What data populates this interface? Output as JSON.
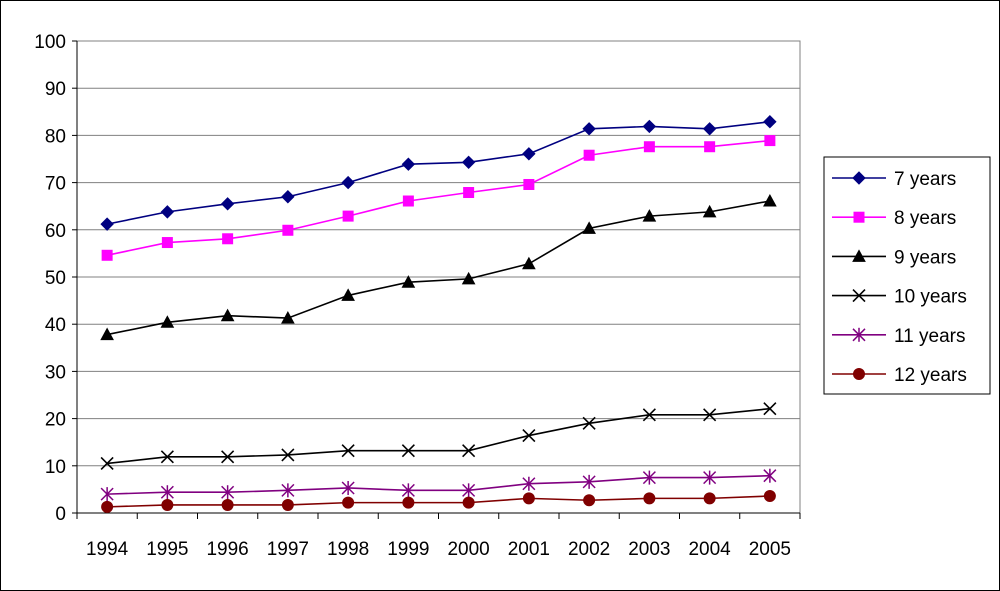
{
  "chart_data": {
    "type": "line",
    "x": [
      "1994",
      "1995",
      "1996",
      "1997",
      "1998",
      "1999",
      "2000",
      "2001",
      "2002",
      "2003",
      "2004",
      "2005"
    ],
    "ylim": [
      0,
      100
    ],
    "yticks": [
      0,
      10,
      20,
      30,
      40,
      50,
      60,
      70,
      80,
      90,
      100
    ],
    "grid": true,
    "legend_position": "right",
    "series": [
      {
        "name": "7 years",
        "color": "#000080",
        "marker": "diamond",
        "values": [
          61.2,
          63.8,
          65.5,
          67.0,
          70.0,
          73.9,
          74.3,
          76.1,
          81.4,
          81.9,
          81.4,
          82.9
        ]
      },
      {
        "name": "8 years",
        "color": "#ff00ff",
        "marker": "square",
        "values": [
          54.6,
          57.3,
          58.1,
          59.9,
          62.9,
          66.1,
          67.9,
          69.6,
          75.8,
          77.6,
          77.6,
          78.9
        ]
      },
      {
        "name": "9 years",
        "color": "#000000",
        "marker": "triangle",
        "values": [
          37.8,
          40.4,
          41.8,
          41.3,
          46.1,
          48.9,
          49.6,
          52.8,
          60.3,
          62.9,
          63.8,
          66.1
        ]
      },
      {
        "name": "10 years",
        "color": "#000000",
        "marker": "x",
        "values": [
          10.5,
          11.9,
          11.9,
          12.3,
          13.2,
          13.2,
          13.2,
          16.4,
          19.0,
          20.8,
          20.8,
          22.1
        ]
      },
      {
        "name": "11 years",
        "color": "#800080",
        "marker": "star",
        "values": [
          4.0,
          4.4,
          4.4,
          4.8,
          5.3,
          4.8,
          4.8,
          6.2,
          6.6,
          7.5,
          7.5,
          7.9
        ]
      },
      {
        "name": "12 years",
        "color": "#800000",
        "marker": "circle",
        "values": [
          1.3,
          1.7,
          1.7,
          1.7,
          2.2,
          2.2,
          2.2,
          3.1,
          2.7,
          3.1,
          3.1,
          3.6
        ]
      }
    ]
  }
}
